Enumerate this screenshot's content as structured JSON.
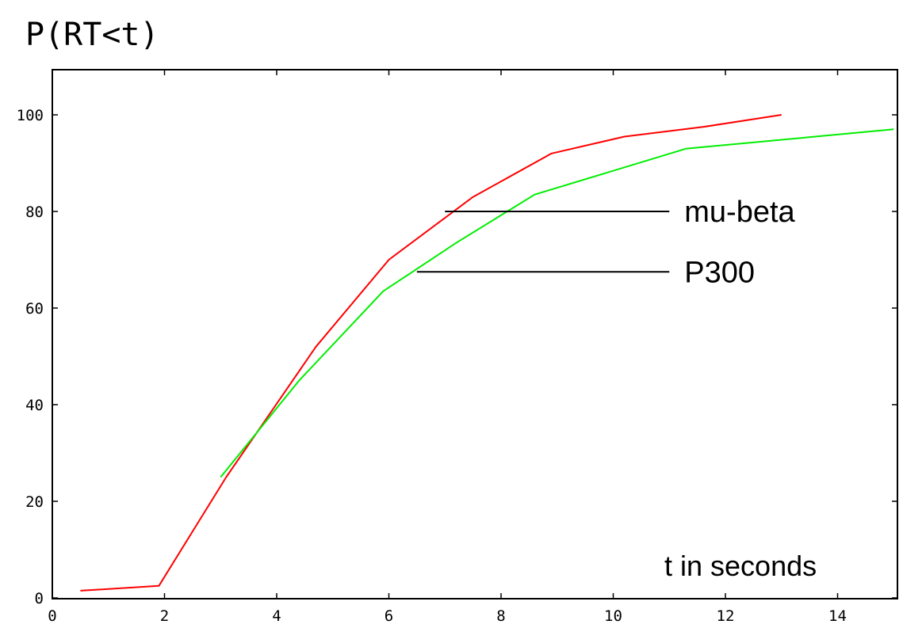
{
  "chart_data": {
    "type": "line",
    "title": "P(RT<t)",
    "xlabel": "t in seconds",
    "ylabel": "",
    "xlim": [
      0,
      15
    ],
    "ylim": [
      0,
      110
    ],
    "x_ticks": [
      "0",
      "2",
      "4",
      "6",
      "8",
      "10",
      "12",
      "14"
    ],
    "y_ticks": [
      "0",
      "20",
      "40",
      "60",
      "80",
      "100"
    ],
    "grid": false,
    "legend": "none",
    "series": [
      {
        "name": "mu-beta",
        "color": "#ff0000",
        "x": [
          0.5,
          1.9,
          3.1,
          4.7,
          6.0,
          7.5,
          8.9,
          10.2,
          11.6,
          13.0
        ],
        "y": [
          1.5,
          2.5,
          25,
          52,
          70,
          83,
          92,
          95.5,
          97.5,
          100
        ]
      },
      {
        "name": "P300",
        "color": "#00ee00",
        "x": [
          3.0,
          4.4,
          5.9,
          7.2,
          8.6,
          11.3,
          15.0
        ],
        "y": [
          25,
          45,
          63.5,
          73.5,
          83.5,
          93,
          97
        ]
      }
    ],
    "annotations": [
      {
        "text": "mu-beta",
        "x_start": 7.0,
        "x_end": 11.0,
        "y": 80
      },
      {
        "text": "P300",
        "x_start": 6.5,
        "x_end": 11.0,
        "y": 67.5
      }
    ]
  }
}
